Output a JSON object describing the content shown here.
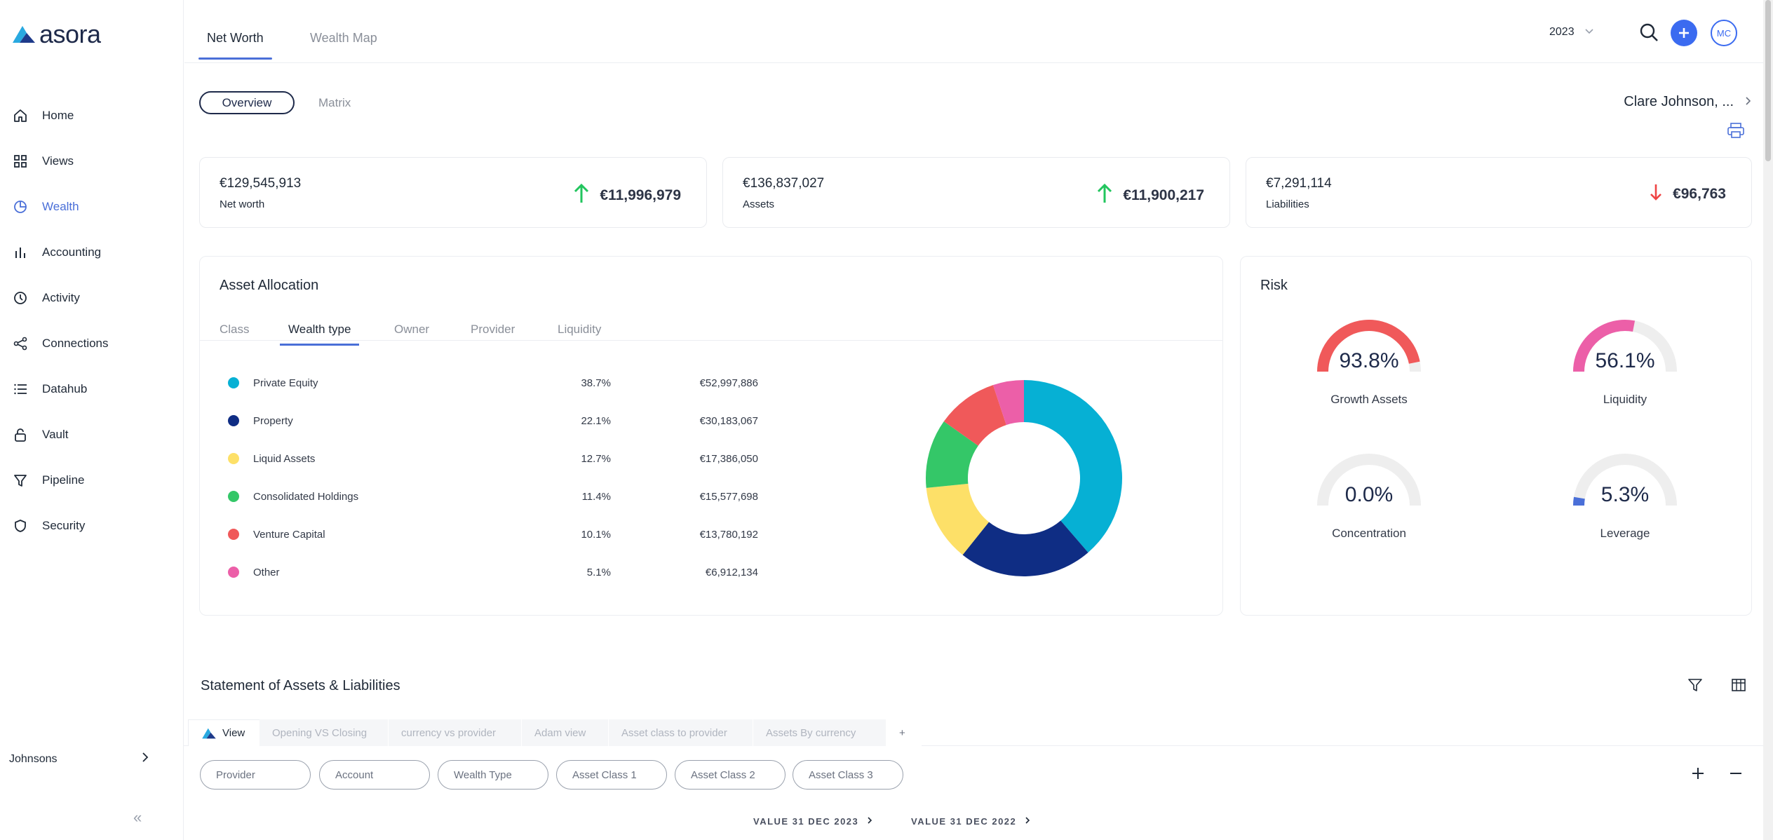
{
  "brand": {
    "name": "asora"
  },
  "sidebar": {
    "items": [
      {
        "label": "Home",
        "icon": "home-icon"
      },
      {
        "label": "Views",
        "icon": "grid-icon"
      },
      {
        "label": "Wealth",
        "icon": "pie-chart-icon"
      },
      {
        "label": "Accounting",
        "icon": "bar-chart-icon"
      },
      {
        "label": "Activity",
        "icon": "clock-icon"
      },
      {
        "label": "Connections",
        "icon": "share-icon"
      },
      {
        "label": "Datahub",
        "icon": "list-icon"
      },
      {
        "label": "Vault",
        "icon": "lock-icon"
      },
      {
        "label": "Pipeline",
        "icon": "filter-icon"
      },
      {
        "label": "Security",
        "icon": "shield-icon"
      }
    ],
    "active": "Wealth",
    "footer_label": "Johnsons"
  },
  "header": {
    "tabs": [
      {
        "label": "Net Worth"
      },
      {
        "label": "Wealth Map"
      }
    ],
    "year": "2023",
    "avatar_initials": "MC"
  },
  "subnav": {
    "overview": "Overview",
    "matrix": "Matrix",
    "client": "Clare Johnson, ..."
  },
  "kpis": [
    {
      "value": "€129,545,913",
      "label": "Net worth",
      "delta": "€11,996,979",
      "direction": "up"
    },
    {
      "value": "€136,837,027",
      "label": "Assets",
      "delta": "€11,900,217",
      "direction": "up"
    },
    {
      "value": "€7,291,114",
      "label": "Liabilities",
      "delta": "€96,763",
      "direction": "down"
    }
  ],
  "allocation": {
    "title": "Asset Allocation",
    "tabs": [
      "Class",
      "Wealth type",
      "Owner",
      "Provider",
      "Liquidity"
    ],
    "active_tab": "Wealth type",
    "rows": [
      {
        "name": "Private Equity",
        "pct": "38.7%",
        "amount": "€52,997,886",
        "color": "#06b0d4"
      },
      {
        "name": "Property",
        "pct": "22.1%",
        "amount": "€30,183,067",
        "color": "#0f2d84"
      },
      {
        "name": "Liquid Assets",
        "pct": "12.7%",
        "amount": "€17,386,050",
        "color": "#fde068"
      },
      {
        "name": "Consolidated Holdings",
        "pct": "11.4%",
        "amount": "€15,577,698",
        "color": "#34c768"
      },
      {
        "name": "Venture Capital",
        "pct": "10.1%",
        "amount": "€13,780,192",
        "color": "#f0595a"
      },
      {
        "name": "Other",
        "pct": "5.1%",
        "amount": "€6,912,134",
        "color": "#ec5fa8"
      }
    ]
  },
  "chart_data": {
    "type": "pie",
    "donut": true,
    "categories": [
      "Private Equity",
      "Property",
      "Liquid Assets",
      "Consolidated Holdings",
      "Venture Capital",
      "Other"
    ],
    "values": [
      38.7,
      22.1,
      12.7,
      11.4,
      10.1,
      5.1
    ],
    "colors": [
      "#06b0d4",
      "#0f2d84",
      "#fde068",
      "#34c768",
      "#f0595a",
      "#ec5fa8"
    ]
  },
  "risk": {
    "title": "Risk",
    "gauges": [
      {
        "label": "Growth Assets",
        "value": "93.8%",
        "fraction": 0.938,
        "color": "#f0595a"
      },
      {
        "label": "Liquidity",
        "value": "56.1%",
        "fraction": 0.561,
        "color": "#ec5fa8"
      },
      {
        "label": "Concentration",
        "value": "0.0%",
        "fraction": 0.0,
        "color": "#4a6fd8"
      },
      {
        "label": "Leverage",
        "value": "5.3%",
        "fraction": 0.053,
        "color": "#4a6fd8"
      }
    ]
  },
  "statement": {
    "title": "Statement of Assets & Liabilities",
    "view_tabs": [
      "View",
      "Opening VS Closing",
      "currency vs provider",
      "Adam view",
      "Asset class to provider",
      "Assets By currency",
      "+"
    ],
    "filters": [
      "Provider",
      "Account",
      "Wealth Type",
      "Asset Class 1",
      "Asset Class 2",
      "Asset Class 3"
    ],
    "columns": [
      "VALUE 31 DEC 2023",
      "VALUE 31 DEC 2022"
    ]
  }
}
